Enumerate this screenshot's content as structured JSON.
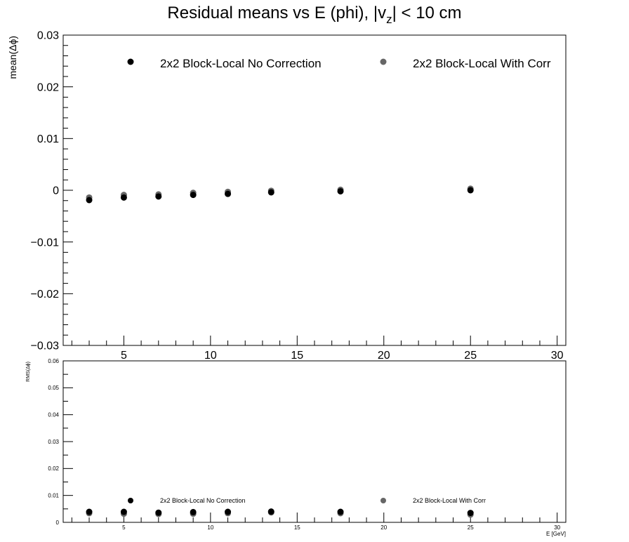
{
  "title": {
    "main": "Residual means vs E (phi), |v",
    "sub": "z",
    "tail": "| < 10 cm"
  },
  "chart_data": [
    {
      "type": "scatter",
      "panel": "top",
      "ylabel": "mean(Δϕ)",
      "xlim": [
        1.5,
        30.5
      ],
      "ylim": [
        -0.03,
        0.03
      ],
      "x_ticks": [
        "5",
        "10",
        "15",
        "20",
        "25",
        "30"
      ],
      "y_ticks": [
        "−0.03",
        "−0.02",
        "−0.01",
        "0",
        "0.01",
        "0.02",
        "0.03"
      ],
      "legend": {
        "placement": "top",
        "entries": [
          "2x2 Block-Local No Correction",
          "2x2 Block-Local With Corr"
        ]
      },
      "series": [
        {
          "name": "2x2 Block-Local No Correction",
          "color": "#000000",
          "x": [
            3,
            5,
            7,
            9,
            11,
            13.5,
            17.5,
            25
          ],
          "y": [
            -0.0019,
            -0.0014,
            -0.0012,
            -0.0009,
            -0.0007,
            -0.0004,
            -0.0002,
            0.0
          ]
        },
        {
          "name": "2x2 Block-Local With Corr",
          "color": "#666666",
          "x": [
            3,
            5,
            7,
            9,
            11,
            13.5,
            17.5,
            25
          ],
          "y": [
            -0.0014,
            -0.0009,
            -0.0008,
            -0.0005,
            -0.0003,
            -0.0001,
            0.0001,
            0.0003
          ]
        }
      ]
    },
    {
      "type": "scatter",
      "panel": "bottom",
      "ylabel": "RMS(Δϕ)",
      "xlabel": "E [GeV]",
      "xlim": [
        1.5,
        30.5
      ],
      "ylim": [
        0,
        0.06
      ],
      "x_ticks": [
        "5",
        "10",
        "15",
        "20",
        "25",
        "30"
      ],
      "y_ticks": [
        "0",
        "0.01",
        "0.02",
        "0.03",
        "0.04",
        "0.05",
        "0.06"
      ],
      "legend": {
        "placement": "bottom",
        "entries": [
          "2x2 Block-Local No Correction",
          "2x2 Block-Local With Corr"
        ]
      },
      "series": [
        {
          "name": "2x2 Block-Local No Correction",
          "color": "#000000",
          "x": [
            3,
            5,
            7,
            9,
            11,
            13.5,
            17.5,
            25
          ],
          "y": [
            0.0039,
            0.0039,
            0.0036,
            0.0038,
            0.0039,
            0.004,
            0.0039,
            0.0035
          ]
        },
        {
          "name": "2x2 Block-Local With Corr",
          "color": "#666666",
          "x": [
            3,
            5,
            7,
            9,
            11,
            13.5,
            17.5,
            25
          ],
          "y": [
            0.0034,
            0.0032,
            0.0031,
            0.0032,
            0.0034,
            0.0037,
            0.0034,
            0.0029
          ]
        }
      ]
    }
  ]
}
